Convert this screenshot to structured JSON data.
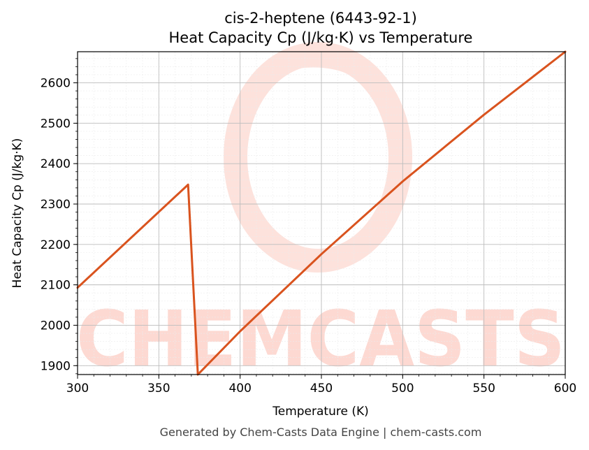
{
  "chart_data": {
    "type": "line",
    "title": "cis-2-heptene (6443-92-1)",
    "subtitle": "Heat Capacity Cp (J/kg·K) vs Temperature",
    "xlabel": "Temperature (K)",
    "ylabel": "Heat Capacity Cp (J/kg·K)",
    "xlim": [
      300,
      600
    ],
    "ylim": [
      1878,
      2677
    ],
    "x_ticks": [
      300,
      350,
      400,
      450,
      500,
      550,
      600
    ],
    "y_ticks": [
      1900,
      2000,
      2100,
      2200,
      2300,
      2400,
      2500,
      2600
    ],
    "grid": true,
    "legend": "none",
    "series": [
      {
        "color": "#d9531e",
        "x": [
          300,
          368,
          374,
          374.5,
          400,
          450,
          500,
          550,
          600
        ],
        "y": [
          2093,
          2348,
          1878,
          1880,
          1985,
          2176,
          2356,
          2521,
          2677
        ]
      }
    ]
  },
  "watermark": {
    "text": "CHEMCASTS",
    "color": "#fdd9d2"
  },
  "footer": "Generated by Chem-Casts Data Engine | chem-casts.com"
}
